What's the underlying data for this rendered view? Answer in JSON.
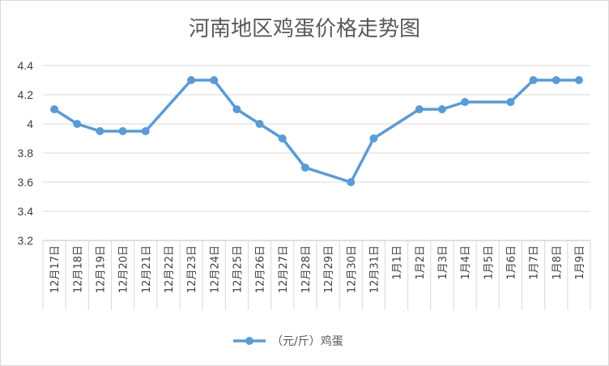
{
  "chart_data": {
    "type": "line",
    "title": "河南地区鸡蛋价格走势图",
    "xlabel": "",
    "ylabel": "",
    "ylim": [
      3.2,
      4.4
    ],
    "yticks": [
      "3.2",
      "3.4",
      "3.6",
      "3.8",
      "4",
      "4.2",
      "4.4"
    ],
    "grid": true,
    "legend_position": "bottom",
    "categories": [
      "12月17日",
      "12月18日",
      "12月19日",
      "12月20日",
      "12月21日",
      "12月22日",
      "12月23日",
      "12月24日",
      "12月25日",
      "12月26日",
      "12月27日",
      "12月28日",
      "12月29日",
      "12月30日",
      "12月31日",
      "1月1日",
      "1月2日",
      "1月3日",
      "1月4日",
      "1月5日",
      "1月6日",
      "1月7日",
      "1月8日",
      "1月9日"
    ],
    "series": [
      {
        "name": "（元/斤）鸡蛋",
        "color": "#5b9bd5",
        "values": [
          4.1,
          4.0,
          3.95,
          3.95,
          3.95,
          null,
          4.3,
          4.3,
          4.1,
          4.0,
          3.9,
          3.7,
          null,
          3.6,
          3.9,
          null,
          4.1,
          4.1,
          4.15,
          null,
          4.15,
          4.3,
          4.3,
          4.3
        ]
      }
    ]
  }
}
